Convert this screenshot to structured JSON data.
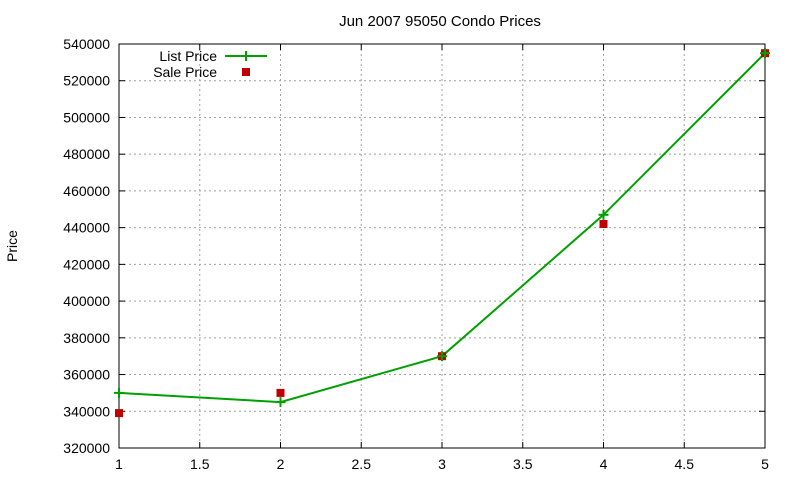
{
  "chart_data": {
    "type": "line",
    "title": "Jun 2007 95050 Condo Prices",
    "xlabel": "",
    "ylabel": "Price",
    "xlim": [
      1,
      5
    ],
    "ylim": [
      320000,
      540000
    ],
    "x_ticks": [
      1,
      1.5,
      2,
      2.5,
      3,
      3.5,
      4,
      4.5,
      5
    ],
    "x_tick_labels": [
      "1",
      "1.5",
      "2",
      "2.5",
      "3",
      "3.5",
      "4",
      "4.5",
      "5"
    ],
    "y_ticks": [
      320000,
      340000,
      360000,
      380000,
      400000,
      420000,
      440000,
      460000,
      480000,
      500000,
      520000,
      540000
    ],
    "y_tick_labels": [
      "320000",
      "340000",
      "360000",
      "380000",
      "400000",
      "420000",
      "440000",
      "460000",
      "480000",
      "500000",
      "520000",
      "540000"
    ],
    "grid": true,
    "legend_position": "top-left",
    "series": [
      {
        "name": "List Price",
        "style": "linespoints",
        "marker": "plus",
        "color": "#00a000",
        "x": [
          1,
          2,
          3,
          4,
          5
        ],
        "y": [
          350000,
          345000,
          370000,
          447000,
          535000
        ]
      },
      {
        "name": "Sale Price",
        "style": "points",
        "marker": "square",
        "color": "#c00000",
        "x": [
          1,
          2,
          3,
          4,
          5
        ],
        "y": [
          339000,
          350000,
          370000,
          442000,
          535000
        ]
      }
    ]
  }
}
